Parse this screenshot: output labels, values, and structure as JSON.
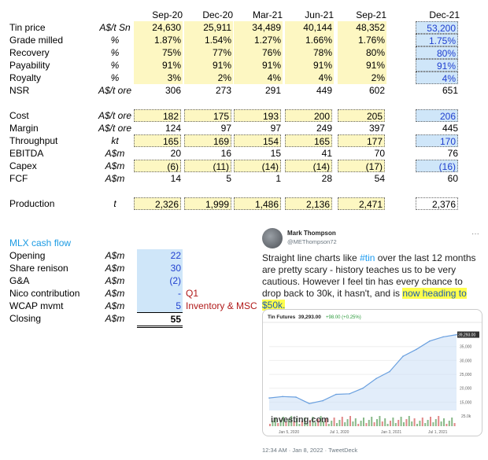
{
  "columns": [
    "Sep-20",
    "Dec-20",
    "Mar-21",
    "Jun-21",
    "Sep-21",
    "Dec-21"
  ],
  "rows": [
    {
      "label": "Tin price",
      "unit": "A$/t Sn",
      "values": [
        "24,630",
        "25,911",
        "34,489",
        "40,144",
        "48,352"
      ],
      "forecast": "53,200"
    },
    {
      "label": "Grade milled",
      "unit": "%",
      "values": [
        "1.87%",
        "1.54%",
        "1.27%",
        "1.66%",
        "1.76%"
      ],
      "forecast": "1.75%"
    },
    {
      "label": "Recovery",
      "unit": "%",
      "values": [
        "75%",
        "77%",
        "76%",
        "78%",
        "80%"
      ],
      "forecast": "80%"
    },
    {
      "label": "Payability",
      "unit": "%",
      "values": [
        "91%",
        "91%",
        "91%",
        "91%",
        "91%"
      ],
      "forecast": "91%"
    },
    {
      "label": "Royalty",
      "unit": "%",
      "values": [
        "3%",
        "2%",
        "4%",
        "4%",
        "2%"
      ],
      "forecast": "4%"
    },
    {
      "label": "NSR",
      "unit": "A$/t ore",
      "values": [
        "306",
        "273",
        "291",
        "449",
        "602"
      ],
      "forecast": "651"
    },
    {
      "label": "Cost",
      "unit": "A$/t ore",
      "values": [
        "182",
        "175",
        "193",
        "200",
        "205"
      ],
      "forecast": "206"
    },
    {
      "label": "Margin",
      "unit": "A$/t ore",
      "values": [
        "124",
        "97",
        "97",
        "249",
        "397"
      ],
      "forecast": "445"
    },
    {
      "label": "Throughput",
      "unit": "kt",
      "values": [
        "165",
        "169",
        "154",
        "165",
        "177"
      ],
      "forecast": "170"
    },
    {
      "label": "EBITDA",
      "unit": "A$m",
      "values": [
        "20",
        "16",
        "15",
        "41",
        "70"
      ],
      "forecast": "76"
    },
    {
      "label": "Capex",
      "unit": "A$m",
      "values": [
        "(6)",
        "(11)",
        "(14)",
        "(14)",
        "(17)"
      ],
      "forecast": "(16)"
    },
    {
      "label": "FCF",
      "unit": "A$m",
      "values": [
        "14",
        "5",
        "1",
        "28",
        "54"
      ],
      "forecast": "60"
    },
    {
      "label": "Production",
      "unit": "t",
      "values": [
        "2,326",
        "1,999",
        "1,486",
        "2,136",
        "2,471"
      ],
      "forecast": "2,376"
    }
  ],
  "cashflow": {
    "title": "MLX cash flow",
    "rows": [
      {
        "label": "Opening",
        "unit": "A$m",
        "value": "22",
        "note": ""
      },
      {
        "label": "Share renison",
        "unit": "A$m",
        "value": "30",
        "note": ""
      },
      {
        "label": "G&A",
        "unit": "A$m",
        "value": "(2)",
        "note": ""
      },
      {
        "label": "Nico contribution",
        "unit": "A$m",
        "value": "-",
        "note": "Q1"
      },
      {
        "label": "WCAP mvmt",
        "unit": "A$m",
        "value": "5",
        "note": "Inventory & MSC"
      },
      {
        "label": "Closing",
        "unit": "A$m",
        "value": "55",
        "note": ""
      }
    ]
  },
  "tweet": {
    "name": "Mark Thompson",
    "handle": "@METhompson72",
    "more": "···",
    "text_before": "Straight line charts like ",
    "hashtag": "#tin",
    "text_mid": " over the last 12 months are pretty scary - history teaches us to be very cautious. However I feel tin has every chance to drop back to 30k, it hasn't, and is ",
    "highlight": "now heading to $50k.",
    "footer": "12:34 AM · Jan 8, 2022 · TweetDeck"
  },
  "chart_data": {
    "type": "line",
    "title": "Tin Futures",
    "price": "39,293.00",
    "change": "+98.00 (+0.25%)",
    "last_label": "39,293.00",
    "watermark": "investing.com",
    "x": [
      "2019-10",
      "2019-12",
      "2020-02",
      "2020-04",
      "2020-06",
      "2020-08",
      "2020-10",
      "2020-12",
      "2021-02",
      "2021-04",
      "2021-06",
      "2021-08",
      "2021-10",
      "2021-12",
      "2022-01"
    ],
    "values": [
      16500,
      17000,
      16800,
      14500,
      15500,
      17800,
      18000,
      20000,
      23500,
      26000,
      31500,
      34000,
      37000,
      38500,
      39293
    ],
    "ylim": [
      12000,
      42000
    ],
    "yticks": [
      "35,000",
      "30,000",
      "25,000",
      "20,000",
      "15,000"
    ],
    "xticks": [
      "Jan 5, 2020",
      "Jul 1, 2020",
      "Jan 3, 2021",
      "Jul 1, 2021"
    ],
    "volume_tick": "25.0k",
    "line_color": "#6aa0df",
    "fill_color": "#cfe1f7"
  }
}
